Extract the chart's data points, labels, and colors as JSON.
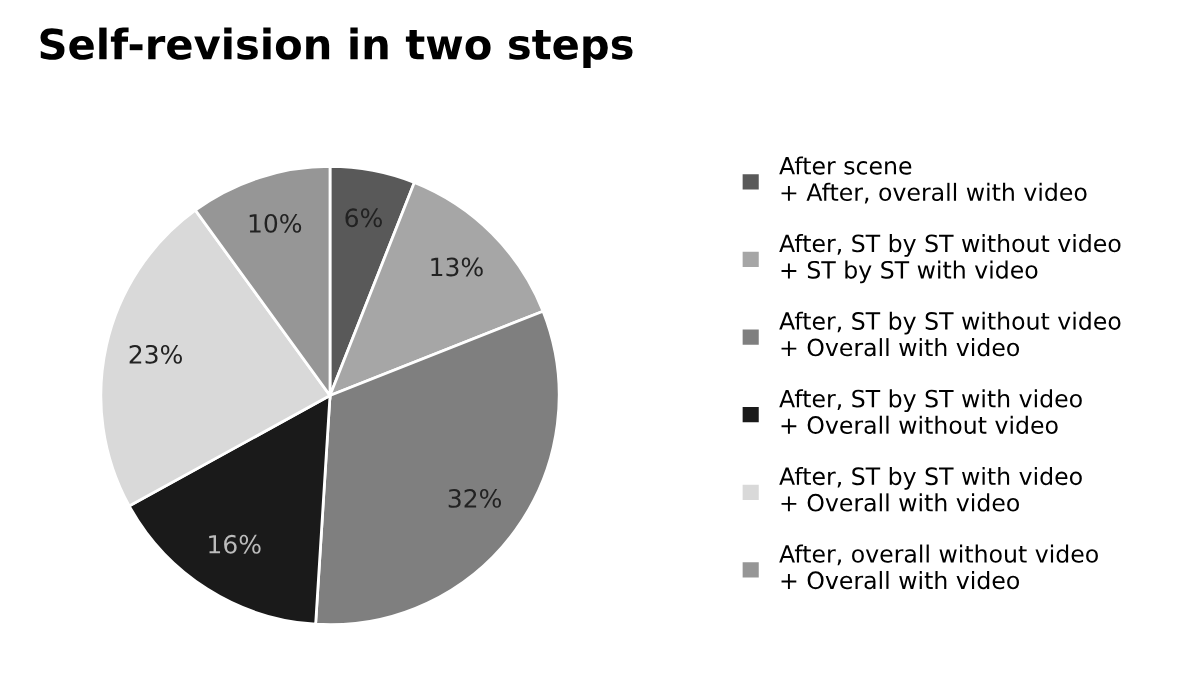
{
  "chart_data": {
    "type": "pie",
    "title": "Self-revision in two steps",
    "categories": [
      "After scene\n+ After, overall with video",
      "After, ST by ST without video\n+ ST by ST with video",
      "After, ST by ST without video\n+ Overall with video",
      "After, ST by ST with video\n+ Overall without video",
      "After, ST by ST with video\n+ Overall with video",
      "After, overall without video\n+ Overall with video"
    ],
    "values": [
      6,
      13,
      32,
      16,
      23,
      10
    ],
    "value_labels": [
      "6%",
      "13%",
      "32%",
      "16%",
      "23%",
      "10%"
    ],
    "colors": [
      "#595959",
      "#a6a6a6",
      "#7f7f7f",
      "#1a1a1a",
      "#d9d9d9",
      "#969696"
    ],
    "legend": "right"
  }
}
